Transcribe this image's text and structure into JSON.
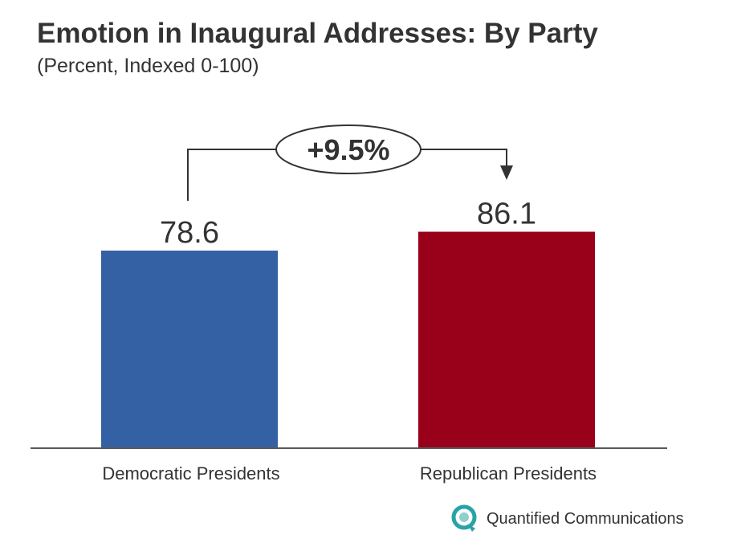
{
  "chart_data": {
    "type": "bar",
    "title": "Emotion in Inaugural Addresses: By Party",
    "subtitle": "(Percent, Indexed 0-100)",
    "categories": [
      "Democratic Presidents",
      "Republican Presidents"
    ],
    "values": [
      78.6,
      86.1
    ],
    "value_labels": [
      "78.6",
      "86.1"
    ],
    "colors": [
      "#3461a3",
      "#990019"
    ],
    "annotation": "+9.5%",
    "ylim": [
      0,
      100
    ],
    "grid": false
  },
  "brand": {
    "name": "Quantified Communications",
    "icon": "quantified-communications-logo-icon"
  }
}
